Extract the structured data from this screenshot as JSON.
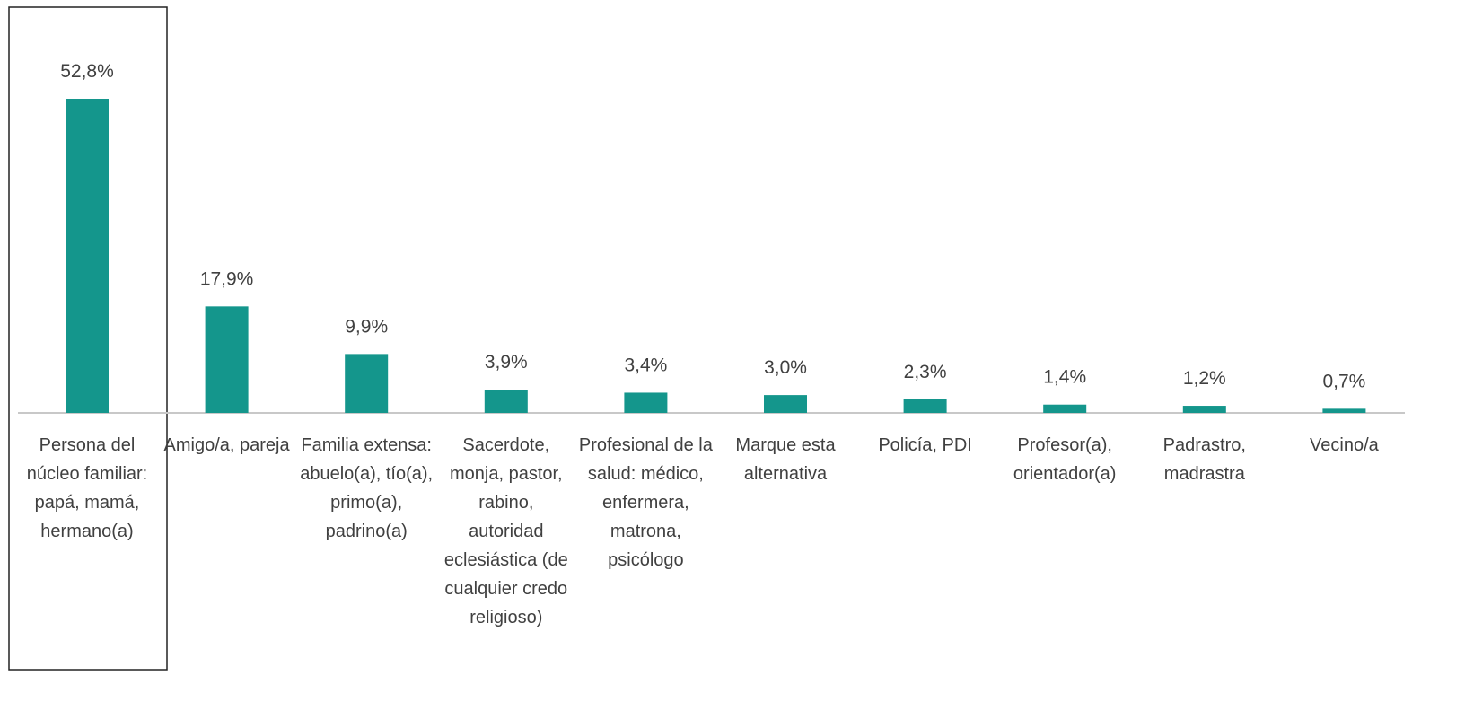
{
  "chart_data": {
    "type": "bar",
    "categories": [
      "Persona del núcleo familiar: papá, mamá, hermano(a)",
      "Amigo/a, pareja",
      "Familia extensa: abuelo(a), tío(a), primo(a), padrino(a)",
      "Sacerdote, monja, pastor, rabino, autoridad eclesiástica (de cualquier credo religioso)",
      "Profesional de la salud: médico, enfermera, matrona, psicólogo",
      "Marque esta alternativa",
      "Policía, PDI",
      "Profesor(a), orientador(a)",
      "Padrastro, madrastra",
      "Vecino/a"
    ],
    "values": [
      52.8,
      17.9,
      9.9,
      3.9,
      3.4,
      3.0,
      2.3,
      1.4,
      1.2,
      0.7
    ],
    "value_labels": [
      "52,8%",
      "17,9%",
      "9,9%",
      "3,9%",
      "3,4%",
      "3,0%",
      "2,3%",
      "1,4%",
      "1,2%",
      "0,7%"
    ],
    "color": "#14968c"
  }
}
